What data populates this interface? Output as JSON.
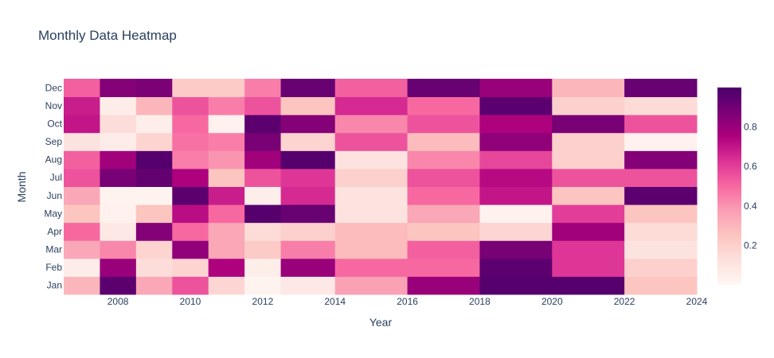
{
  "chart_data": {
    "type": "heatmap",
    "title": "Monthly Data Heatmap",
    "xlabel": "Year",
    "ylabel": "Month",
    "x": [
      2007,
      2008,
      2009,
      2010,
      2011,
      2012,
      2013,
      2015,
      2017,
      2019,
      2021,
      2023
    ],
    "x_ticks": [
      "2008",
      "2010",
      "2012",
      "2014",
      "2016",
      "2018",
      "2020",
      "2022",
      "2024"
    ],
    "y": [
      "Jan",
      "Feb",
      "Mar",
      "Apr",
      "May",
      "Jun",
      "Jul",
      "Aug",
      "Sep",
      "Oct",
      "Nov",
      "Dec"
    ],
    "z": [
      [
        0.3,
        0.95,
        0.35,
        0.55,
        0.17,
        0.02,
        0.08,
        0.37,
        0.8,
        0.97,
        0.97,
        0.25
      ],
      [
        0.06,
        0.8,
        0.14,
        0.18,
        0.75,
        0.05,
        0.8,
        0.5,
        0.5,
        0.95,
        0.62,
        0.2
      ],
      [
        0.35,
        0.43,
        0.18,
        0.82,
        0.35,
        0.22,
        0.45,
        0.28,
        0.52,
        0.88,
        0.62,
        0.11
      ],
      [
        0.5,
        0.08,
        0.85,
        0.5,
        0.35,
        0.15,
        0.2,
        0.28,
        0.25,
        0.17,
        0.78,
        0.15
      ],
      [
        0.25,
        0.03,
        0.25,
        0.72,
        0.5,
        0.97,
        0.92,
        0.11,
        0.35,
        0.03,
        0.6,
        0.25
      ],
      [
        0.35,
        0.02,
        0.02,
        0.95,
        0.68,
        0.05,
        0.65,
        0.11,
        0.5,
        0.7,
        0.25,
        0.95
      ],
      [
        0.55,
        0.88,
        0.93,
        0.75,
        0.25,
        0.55,
        0.62,
        0.2,
        0.55,
        0.73,
        0.55,
        0.55
      ],
      [
        0.52,
        0.78,
        0.97,
        0.45,
        0.4,
        0.78,
        0.97,
        0.11,
        0.43,
        0.58,
        0.2,
        0.85
      ],
      [
        0.11,
        0.06,
        0.18,
        0.48,
        0.45,
        0.88,
        0.18,
        0.55,
        0.28,
        0.82,
        0.2,
        0.03
      ],
      [
        0.7,
        0.14,
        0.05,
        0.5,
        0.03,
        0.95,
        0.85,
        0.43,
        0.55,
        0.75,
        0.88,
        0.55
      ],
      [
        0.68,
        0.06,
        0.3,
        0.55,
        0.45,
        0.55,
        0.25,
        0.65,
        0.5,
        0.95,
        0.2,
        0.15
      ],
      [
        0.52,
        0.85,
        0.87,
        0.22,
        0.22,
        0.45,
        0.92,
        0.52,
        0.92,
        0.8,
        0.3,
        0.92
      ]
    ],
    "colorscale_name": "RdPu",
    "colorbar_ticks": [
      "0.2",
      "0.4",
      "0.6",
      "0.8"
    ],
    "zrange": [
      0,
      1
    ],
    "grid": false,
    "colors": {
      "title": "#2a3f5f",
      "text": "#2a3f5f",
      "scale": [
        "#fff7f3",
        "#fde0dd",
        "#fcc5c0",
        "#fa9fb5",
        "#f768a1",
        "#dd3497",
        "#ae017e",
        "#7a0177",
        "#49006a"
      ]
    }
  }
}
